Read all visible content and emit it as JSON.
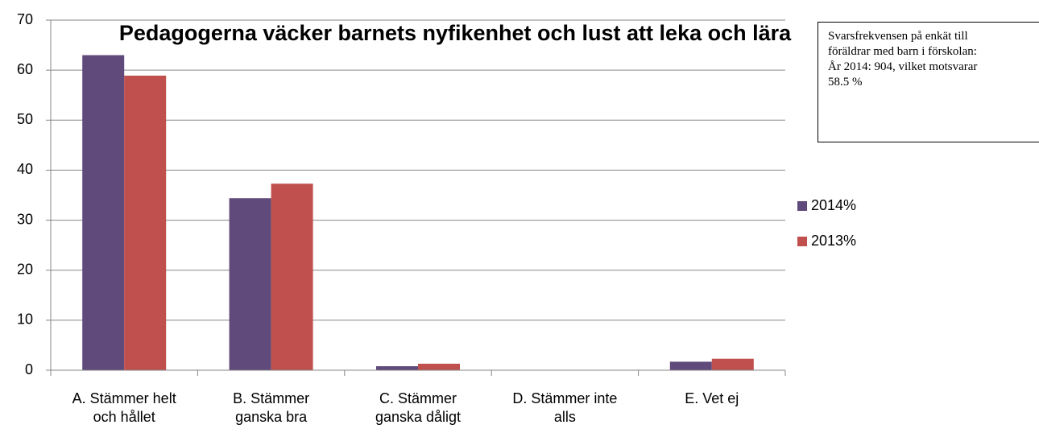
{
  "chart_data": {
    "type": "bar",
    "title": "Pedagogerna väcker barnets nyfikenhet och lust att leka och lära",
    "categories": [
      "A. Stämmer helt och hållet",
      "B. Stämmer ganska bra",
      "C. Stämmer ganska dåligt",
      "D. Stämmer inte alls",
      "E. Vet ej"
    ],
    "series": [
      {
        "name": "2014%",
        "color": "#604a7b",
        "values": [
          63,
          34.4,
          0.8,
          0,
          1.7
        ]
      },
      {
        "name": "2013%",
        "color": "#c0504d",
        "values": [
          58.9,
          37.3,
          1.3,
          0,
          2.3
        ]
      }
    ],
    "ylim": [
      0,
      70
    ],
    "yticks": [
      0,
      10,
      20,
      30,
      40,
      50,
      60,
      70
    ],
    "grid": true,
    "legend": "right",
    "annotation": [
      "Svarsfrekvensen på enkät till föräldrar med barn i förskolan:",
      "År 2014: 904, vilket motsvarar 58.5 %"
    ]
  }
}
